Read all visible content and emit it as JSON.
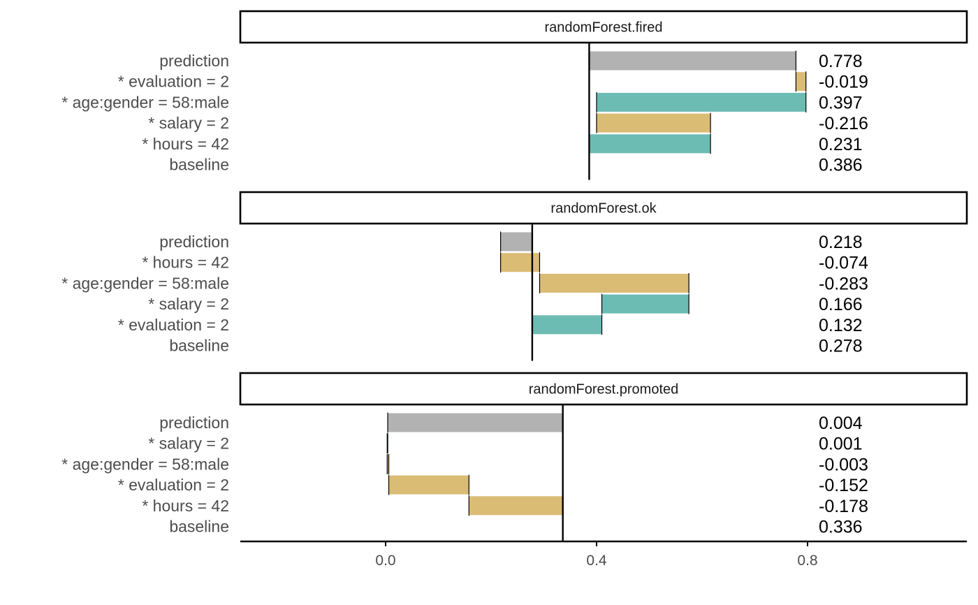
{
  "chart_data": {
    "type": "bar",
    "subtype": "waterfall-break-down",
    "title": "",
    "xlabel": "",
    "ylabel": "",
    "xlim": [
      -0.27,
      1.1
    ],
    "x_ticks": [
      {
        "value": 0.0,
        "label": "0.0"
      },
      {
        "value": 0.4,
        "label": "0.4"
      },
      {
        "value": 0.8,
        "label": "0.8"
      }
    ],
    "grid": false,
    "colors": {
      "prediction": "#b2b2b2",
      "positive": "#6cbcb4",
      "negative": "#dbbc75"
    },
    "panels": [
      {
        "name": "randomForest.fired",
        "baseline": 0.386,
        "rows": [
          {
            "label": "prediction",
            "value": 0.778,
            "value_label": "0.778",
            "start": 0.386,
            "end": 0.778,
            "sign": "prediction"
          },
          {
            "label": "* evaluation = 2",
            "value": -0.019,
            "value_label": "-0.019",
            "start": 0.797,
            "end": 0.778,
            "sign": "negative"
          },
          {
            "label": "* age:gender = 58:male",
            "value": 0.397,
            "value_label": "0.397",
            "start": 0.4,
            "end": 0.797,
            "sign": "positive"
          },
          {
            "label": "* salary = 2",
            "value": -0.216,
            "value_label": "-0.216",
            "start": 0.616,
            "end": 0.4,
            "sign": "negative"
          },
          {
            "label": "* hours = 42",
            "value": 0.231,
            "value_label": "0.231",
            "start": 0.386,
            "end": 0.616,
            "sign": "positive"
          },
          {
            "label": "baseline",
            "value": 0.386,
            "value_label": "0.386",
            "start": null,
            "end": null,
            "sign": "baseline"
          }
        ]
      },
      {
        "name": "randomForest.ok",
        "baseline": 0.278,
        "rows": [
          {
            "label": "prediction",
            "value": 0.218,
            "value_label": "0.218",
            "start": 0.278,
            "end": 0.218,
            "sign": "prediction"
          },
          {
            "label": "* hours = 42",
            "value": -0.074,
            "value_label": "-0.074",
            "start": 0.292,
            "end": 0.218,
            "sign": "negative"
          },
          {
            "label": "* age:gender = 58:male",
            "value": -0.283,
            "value_label": "-0.283",
            "start": 0.575,
            "end": 0.292,
            "sign": "negative"
          },
          {
            "label": "* salary = 2",
            "value": 0.166,
            "value_label": "0.166",
            "start": 0.41,
            "end": 0.575,
            "sign": "positive"
          },
          {
            "label": "* evaluation = 2",
            "value": 0.132,
            "value_label": "0.132",
            "start": 0.278,
            "end": 0.41,
            "sign": "positive"
          },
          {
            "label": "baseline",
            "value": 0.278,
            "value_label": "0.278",
            "start": null,
            "end": null,
            "sign": "baseline"
          }
        ]
      },
      {
        "name": "randomForest.promoted",
        "baseline": 0.336,
        "rows": [
          {
            "label": "prediction",
            "value": 0.004,
            "value_label": "0.004",
            "start": 0.336,
            "end": 0.004,
            "sign": "prediction"
          },
          {
            "label": "* salary = 2",
            "value": 0.001,
            "value_label": "0.001",
            "start": 0.003,
            "end": 0.004,
            "sign": "positive"
          },
          {
            "label": "* age:gender = 58:male",
            "value": -0.003,
            "value_label": "-0.003",
            "start": 0.006,
            "end": 0.003,
            "sign": "negative"
          },
          {
            "label": "* evaluation = 2",
            "value": -0.152,
            "value_label": "-0.152",
            "start": 0.158,
            "end": 0.006,
            "sign": "negative"
          },
          {
            "label": "* hours = 42",
            "value": -0.178,
            "value_label": "-0.178",
            "start": 0.336,
            "end": 0.158,
            "sign": "negative"
          },
          {
            "label": "baseline",
            "value": 0.336,
            "value_label": "0.336",
            "start": null,
            "end": null,
            "sign": "baseline"
          }
        ]
      }
    ]
  }
}
